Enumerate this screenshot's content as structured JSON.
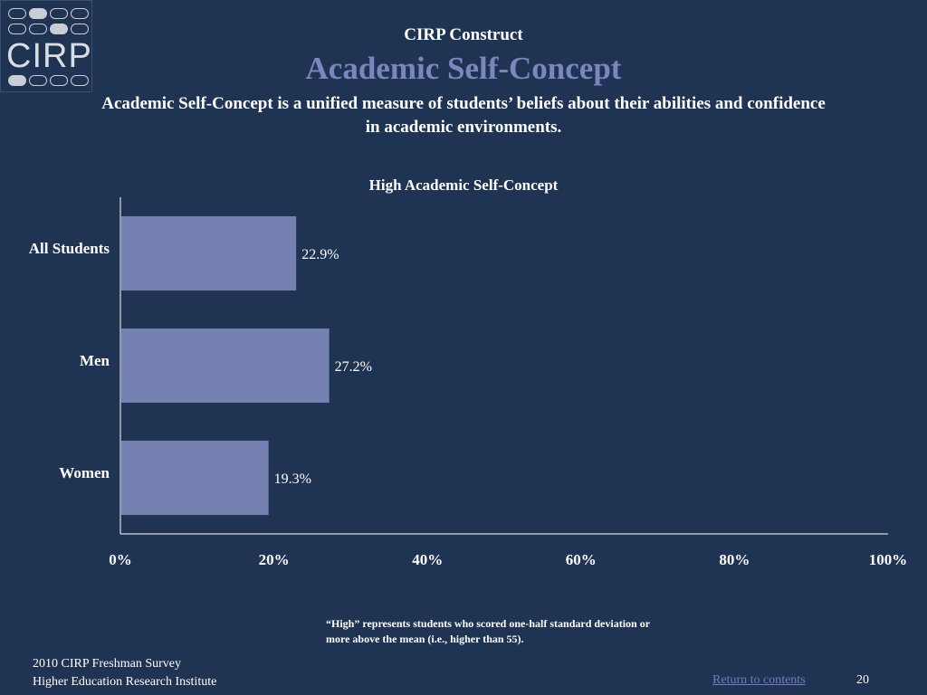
{
  "logo": {
    "text": "CIRP"
  },
  "header": {
    "construct": "CIRP Construct",
    "title": "Academic Self-Concept",
    "description": "Academic Self-Concept is a unified measure of students’ beliefs about their abilities and confidence in academic environments."
  },
  "chart_data": {
    "type": "bar",
    "orientation": "horizontal",
    "title": "High Academic Self-Concept",
    "categories": [
      "All Students",
      "Men",
      "Women"
    ],
    "values": [
      22.9,
      27.2,
      19.3
    ],
    "value_labels": [
      "22.9%",
      "27.2%",
      "19.3%"
    ],
    "xlim": [
      0,
      100
    ],
    "x_ticks": [
      0,
      20,
      40,
      60,
      80,
      100
    ],
    "x_tick_labels": [
      "0%",
      "20%",
      "40%",
      "60%",
      "80%",
      "100%"
    ],
    "bar_color": "#7481b1",
    "grid": false
  },
  "footnote": "“High” represents students who scored one-half standard deviation or more above the mean (i.e., higher than 55).",
  "footer": {
    "line1": "2010 CIRP Freshman Survey",
    "line2": "Higher Education Research Institute",
    "return_link": "Return to contents",
    "page_number": "20"
  },
  "colors": {
    "background": "#1f3352",
    "title_accent": "#7b86bd",
    "link": "#6f7fb6"
  }
}
